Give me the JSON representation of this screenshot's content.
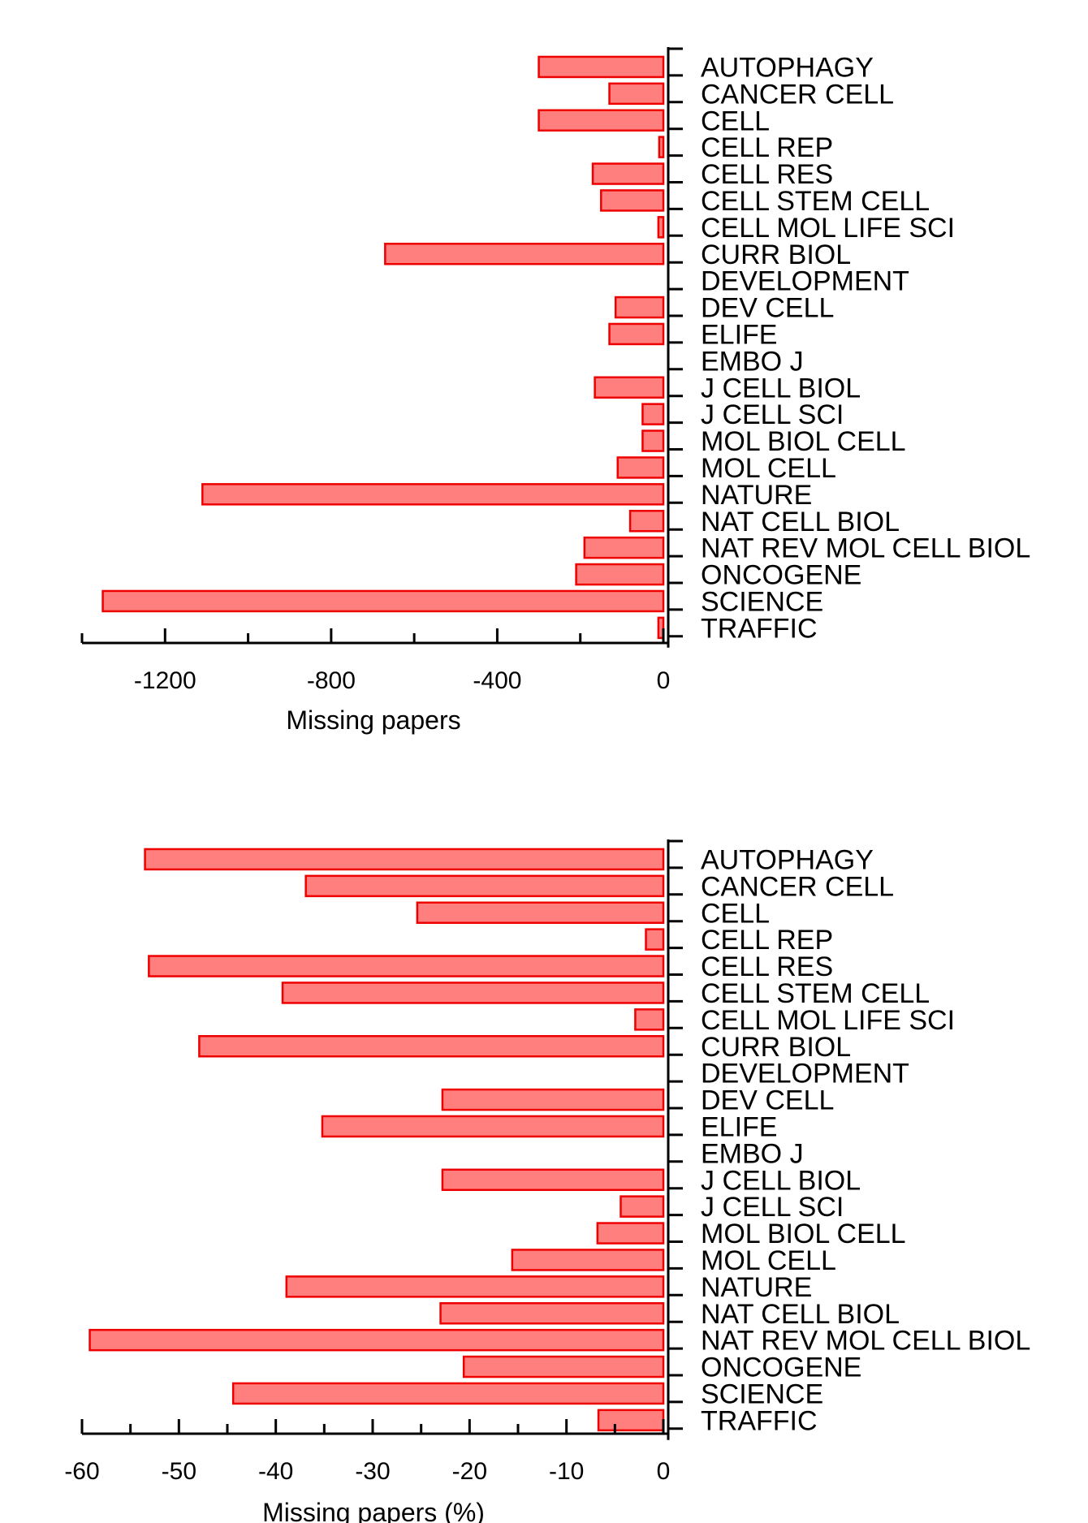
{
  "style": {
    "bar_fill": "#ff7f7f",
    "bar_stroke": "#ee0000",
    "axis_color": "#000000"
  },
  "chart_data": [
    {
      "type": "bar",
      "orientation": "horizontal",
      "xlabel": "Missing papers",
      "xlim": [
        -1400,
        0
      ],
      "xticks": [
        -1200,
        -800,
        -400,
        0
      ],
      "xtick_labels": [
        "-1200",
        "-800",
        "-400",
        "0"
      ],
      "grid": false,
      "categories": [
        "AUTOPHAGY",
        "CANCER CELL",
        "CELL",
        "CELL REP",
        "CELL RES",
        "CELL STEM CELL",
        "CELL MOL LIFE SCI",
        "CURR BIOL",
        "DEVELOPMENT",
        "DEV CELL",
        "ELIFE",
        "EMBO J",
        "J CELL BIOL",
        "J CELL SCI",
        "MOL BIOL CELL",
        "MOL CELL",
        "NATURE",
        "NAT CELL BIOL",
        "NAT REV MOL CELL BIOL",
        "ONCOGENE",
        "SCIENCE",
        "TRAFFIC"
      ],
      "values": [
        -300,
        -130,
        -300,
        -10,
        -170,
        -150,
        -12,
        -670,
        0,
        -115,
        -130,
        0,
        -165,
        -50,
        -50,
        -110,
        -1110,
        -80,
        -190,
        -210,
        -1350,
        -12
      ]
    },
    {
      "type": "bar",
      "orientation": "horizontal",
      "xlabel": "Missing papers (%)",
      "xlim": [
        -60,
        0
      ],
      "xticks": [
        -60,
        -50,
        -40,
        -30,
        -20,
        -10,
        0
      ],
      "xtick_labels": [
        "-60",
        "-50",
        "-40",
        "-30",
        "-20",
        "-10",
        "0"
      ],
      "grid": false,
      "categories": [
        "AUTOPHAGY",
        "CANCER CELL",
        "CELL",
        "CELL REP",
        "CELL RES",
        "CELL STEM CELL",
        "CELL MOL LIFE SCI",
        "CURR BIOL",
        "DEVELOPMENT",
        "DEV CELL",
        "ELIFE",
        "EMBO J",
        "J CELL BIOL",
        "J CELL SCI",
        "MOL BIOL CELL",
        "MOL CELL",
        "NATURE",
        "NAT CELL BIOL",
        "NAT REV MOL CELL BIOL",
        "ONCOGENE",
        "SCIENCE",
        "TRAFFIC"
      ],
      "values": [
        -53.5,
        -36.9,
        -25.4,
        -1.8,
        -53.1,
        -39.3,
        -2.9,
        -47.9,
        0,
        -22.8,
        -35.2,
        0,
        -22.8,
        -4.4,
        -6.8,
        -15.6,
        -38.9,
        -23.0,
        -59.2,
        -20.6,
        -44.4,
        -6.7
      ]
    }
  ]
}
